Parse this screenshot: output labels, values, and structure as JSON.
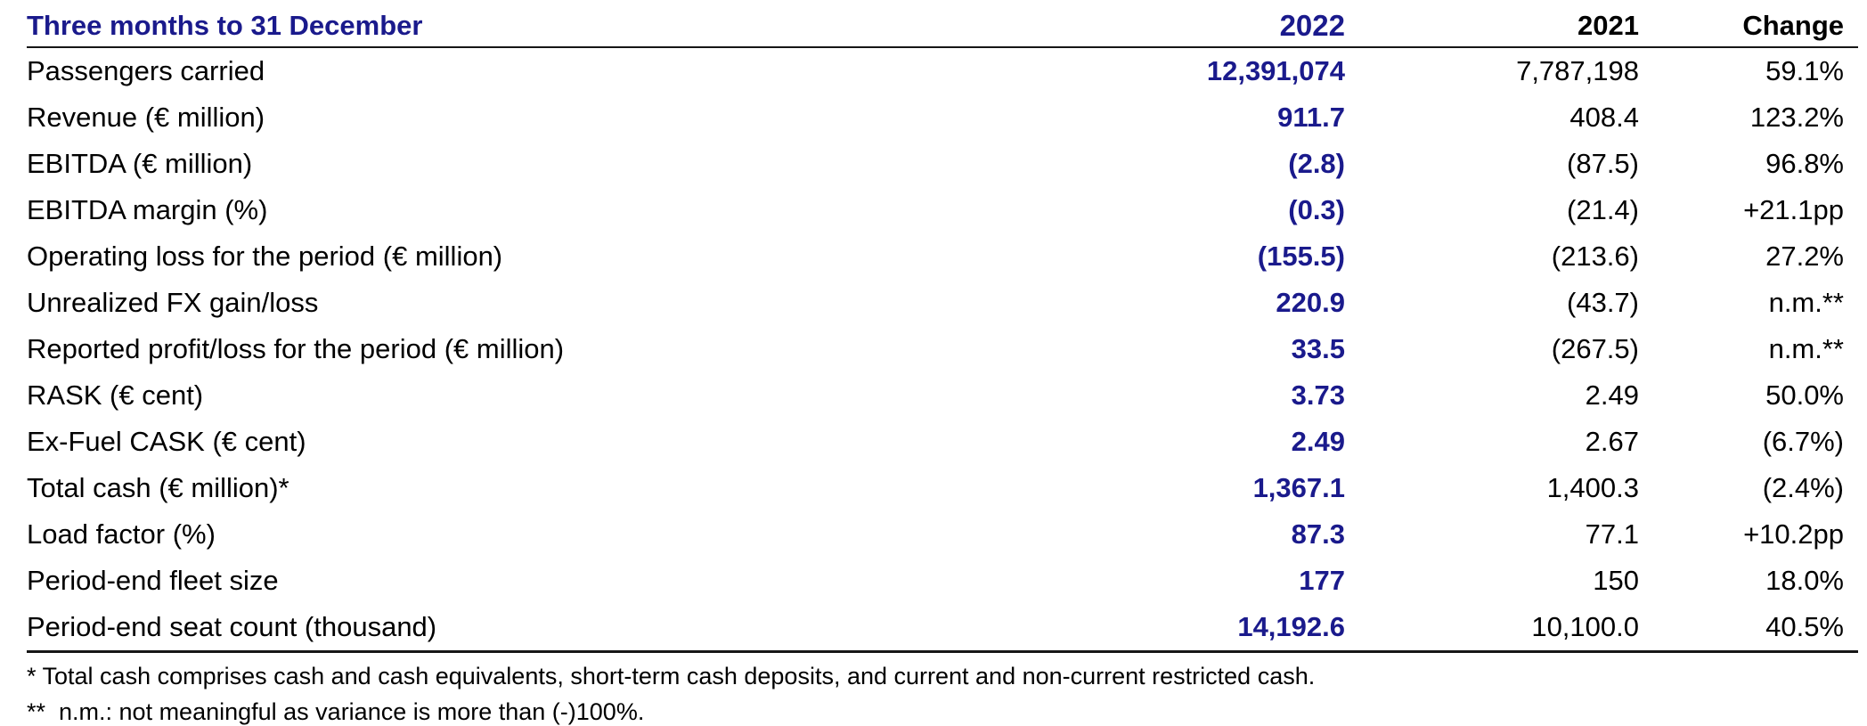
{
  "colors": {
    "accent_navy": "#1A1A8C",
    "text_black": "#000000",
    "rule_black": "#161616"
  },
  "table": {
    "title": "Three months to 31 December",
    "columns": [
      "2022",
      "2021",
      "Change"
    ],
    "rows": [
      {
        "label": "Passengers carried",
        "y2022": "12,391,074",
        "y2021": "7,787,198",
        "change": "59.1%"
      },
      {
        "label": "Revenue (€ million)",
        "y2022": "911.7",
        "y2021": "408.4",
        "change": "123.2%"
      },
      {
        "label": "EBITDA (€ million)",
        "y2022": "(2.8)",
        "y2021": "(87.5)",
        "change": "96.8%"
      },
      {
        "label": "EBITDA margin (%)",
        "y2022": "(0.3)",
        "y2021": "(21.4)",
        "change": "+21.1pp"
      },
      {
        "label": "Operating loss for the period (€ million)",
        "y2022": "(155.5)",
        "y2021": "(213.6)",
        "change": "27.2%"
      },
      {
        "label": "Unrealized FX gain/loss",
        "y2022": "220.9",
        "y2021": "(43.7)",
        "change": "n.m.**"
      },
      {
        "label": "Reported profit/loss for the period (€ million)",
        "y2022": "33.5",
        "y2021": "(267.5)",
        "change": "n.m.**"
      },
      {
        "label": "RASK (€ cent)",
        "y2022": "3.73",
        "y2021": "2.49",
        "change": "50.0%"
      },
      {
        "label": "Ex-Fuel CASK (€ cent)",
        "y2022": "2.49",
        "y2021": "2.67",
        "change": "(6.7%)"
      },
      {
        "label": "Total cash (€ million)*",
        "y2022": "1,367.1",
        "y2021": "1,400.3",
        "change": "(2.4%)"
      },
      {
        "label": "Load factor (%)",
        "y2022": "87.3",
        "y2021": "77.1",
        "change": "+10.2pp"
      },
      {
        "label": "Period-end fleet size",
        "y2022": "177",
        "y2021": "150",
        "change": "18.0%"
      },
      {
        "label": "Period-end seat count (thousand)",
        "y2022": "14,192.6",
        "y2021": "10,100.0",
        "change": "40.5%"
      }
    ]
  },
  "footnotes": [
    "* Total cash comprises cash and cash equivalents, short-term cash deposits, and current and non-current restricted cash.",
    "**  n.m.: not meaningful as variance is more than (-)100%."
  ]
}
